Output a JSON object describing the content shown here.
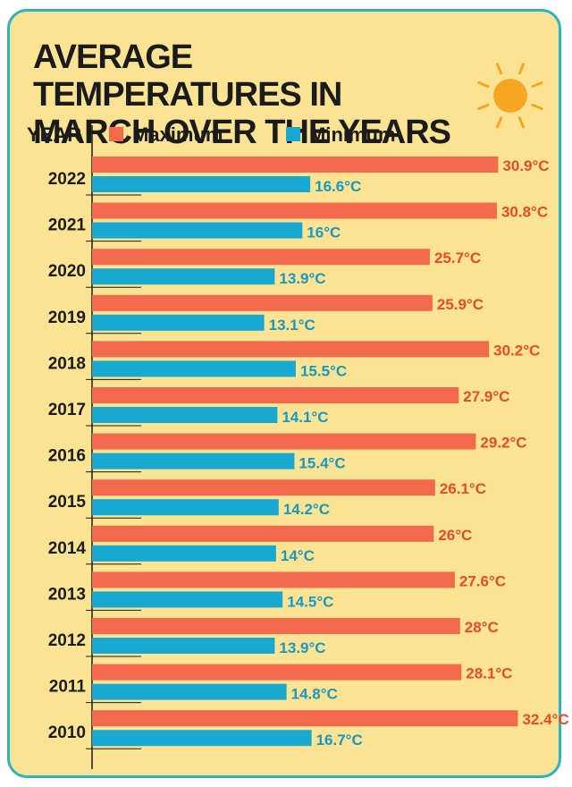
{
  "title_line1": "AVERAGE TEMPERATURES IN",
  "title_line2": "MARCH OVER THE YEARS",
  "colors": {
    "background": "#fbe394",
    "border": "#2ab4c8",
    "maximum": "#f26a4b",
    "minimum": "#19a9d0",
    "max_label": "#e84a2b",
    "min_label": "#1798c2",
    "sun": "#f5a623"
  },
  "icons": [
    "sun-icon"
  ],
  "chart_data": {
    "type": "bar",
    "orientation": "horizontal",
    "title": "AVERAGE TEMPERATURES IN MARCH OVER THE YEARS",
    "category_header": "YEAR",
    "categories": [
      "2022",
      "2021",
      "2020",
      "2019",
      "2018",
      "2017",
      "2016",
      "2015",
      "2014",
      "2013",
      "2012",
      "2011",
      "2010"
    ],
    "series": [
      {
        "name": "Maximum",
        "values": [
          30.9,
          30.8,
          25.7,
          25.9,
          30.2,
          27.9,
          29.2,
          26.1,
          26,
          27.6,
          28,
          28.1,
          32.4
        ],
        "labels": [
          "30.9°C",
          "30.8°C",
          "25.7°C",
          "25.9°C",
          "30.2°C",
          "27.9°C",
          "29.2°C",
          "26.1°C",
          "26°C",
          "27.6°C",
          "28°C",
          "28.1°C",
          "32.4°C"
        ]
      },
      {
        "name": "Minimum",
        "values": [
          16.6,
          16,
          13.9,
          13.1,
          15.5,
          14.1,
          15.4,
          14.2,
          14,
          14.5,
          13.9,
          14.8,
          16.7
        ],
        "labels": [
          "16.6°C",
          "16°C",
          "13.9°C",
          "13.1°C",
          "15.5°C",
          "14.1°C",
          "15.4°C",
          "14.2°C",
          "14°C",
          "14.5°C",
          "13.9°C",
          "14.8°C",
          "16.7°C"
        ]
      }
    ],
    "legend_position": "top",
    "xlim": [
      0,
      34
    ],
    "grid": false
  }
}
